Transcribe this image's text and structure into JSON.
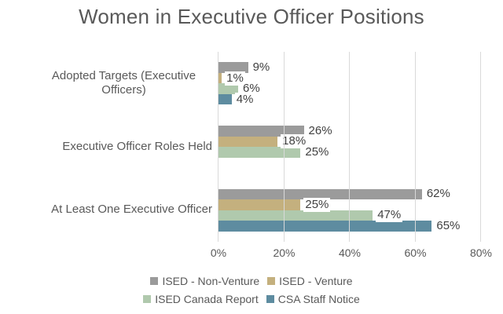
{
  "title": "Women in Executive Officer Positions",
  "chart_data": {
    "type": "bar",
    "orientation": "horizontal",
    "title": "Women in Executive Officer Positions",
    "categories": [
      "Adopted Targets (Executive Officers)",
      "Executive Officer Roles Held",
      "At Least One Executive Officer"
    ],
    "series": [
      {
        "name": "ISED - Non-Venture",
        "color": "#9b9b9b",
        "values": [
          9,
          26,
          62
        ]
      },
      {
        "name": "ISED - Venture",
        "color": "#c4b07e",
        "values": [
          1,
          18,
          25
        ]
      },
      {
        "name": "ISED Canada Report",
        "color": "#b0c9ad",
        "values": [
          6,
          25,
          47
        ]
      },
      {
        "name": "CSA Staff Notice",
        "color": "#5e8ca0",
        "values": [
          4,
          null,
          65
        ]
      }
    ],
    "value_suffix": "%",
    "xlim": [
      0,
      80
    ],
    "x_tick_values": [
      0,
      20,
      40,
      60,
      80
    ],
    "x_tick_labels": [
      "0%",
      "20%",
      "40%",
      "60%",
      "80%"
    ],
    "data_labels": true,
    "gridlines": "vertical",
    "legend_position": "bottom",
    "legend_rows": [
      [
        "ISED - Non-Venture",
        "ISED - Venture"
      ],
      [
        "ISED Canada Report",
        "CSA Staff Notice"
      ]
    ],
    "colors": {
      "title_text": "#595959",
      "axis_text": "#595959",
      "data_label_text": "#404040",
      "gridline": "#d9d9d9",
      "background": "#ffffff"
    }
  }
}
